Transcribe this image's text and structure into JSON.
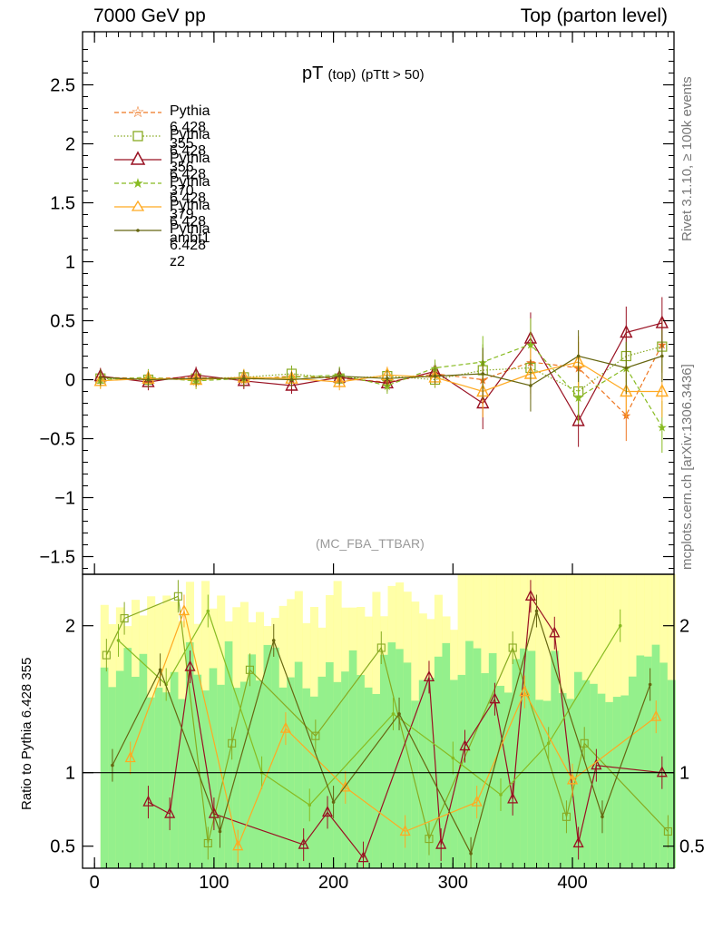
{
  "header": {
    "left": "7000 GeV pp",
    "right": "Top (parton level)"
  },
  "side_labels": {
    "rivet": "Rivet 3.1.10, ≥ 100k events",
    "mcplots": "mcplots.cern.ch [arXiv:1306.3436]"
  },
  "plot_title": {
    "main": "pT",
    "sub1": "(top)",
    "sub2": "(pTtt > 50)"
  },
  "watermark": "(MC_FBA_TTBAR)",
  "chart_data": [
    {
      "type": "line",
      "title": "pT (top) (pTtt > 50)",
      "xlabel": "",
      "ylabel": "",
      "xlim": [
        -10,
        485
      ],
      "ylim": [
        -1.65,
        2.95
      ],
      "yticks": [
        -1.5,
        -1,
        -0.5,
        0,
        0.5,
        1,
        1.5,
        2,
        2.5
      ],
      "ytick_labels": [
        "−1.5",
        "−1",
        "−0.5",
        "0",
        "0.5",
        "1",
        "1.5",
        "2",
        "2.5"
      ],
      "legend_position": "top-left",
      "series": [
        {
          "name": "Pythia 6.428 355",
          "color": "#ee7722",
          "marker": "star",
          "dash": "dashed",
          "x": [
            5,
            45,
            85,
            125,
            165,
            205,
            245,
            285,
            325,
            365,
            405,
            445,
            475
          ],
          "y": [
            0.02,
            0.01,
            0.02,
            0.0,
            0.03,
            0.01,
            -0.02,
            0.05,
            0.0,
            0.15,
            0.1,
            -0.3,
            0.3
          ]
        },
        {
          "name": "Pythia 6.428 356",
          "color": "#88aa22",
          "marker": "open-square",
          "dash": "dotted",
          "x": [
            5,
            45,
            85,
            125,
            165,
            205,
            245,
            285,
            325,
            365,
            405,
            445,
            475
          ],
          "y": [
            0.01,
            0.0,
            0.01,
            0.02,
            0.05,
            0.01,
            0.03,
            0.0,
            0.08,
            0.1,
            -0.1,
            0.2,
            0.28
          ]
        },
        {
          "name": "Pythia 6.428 370",
          "color": "#991122",
          "marker": "open-triangle",
          "dash": "solid",
          "x": [
            5,
            45,
            85,
            125,
            165,
            205,
            245,
            285,
            325,
            365,
            405,
            445,
            475
          ],
          "y": [
            0.03,
            -0.02,
            0.04,
            -0.01,
            -0.05,
            0.02,
            -0.03,
            0.07,
            -0.2,
            0.35,
            -0.35,
            0.4,
            0.48
          ]
        },
        {
          "name": "Pythia 6.428 379",
          "color": "#88bb22",
          "marker": "star",
          "dash": "dashed",
          "x": [
            5,
            45,
            85,
            125,
            165,
            205,
            245,
            285,
            325,
            365,
            405,
            445,
            475
          ],
          "y": [
            0.0,
            0.02,
            -0.01,
            0.01,
            0.02,
            0.04,
            -0.05,
            0.1,
            0.15,
            0.3,
            -0.15,
            0.1,
            -0.4
          ]
        },
        {
          "name": "Pythia 6.428 ambt1",
          "color": "#ffaa22",
          "marker": "open-triangle",
          "dash": "solid",
          "x": [
            5,
            45,
            85,
            125,
            165,
            205,
            245,
            285,
            325,
            365,
            405,
            445,
            475
          ],
          "y": [
            -0.01,
            0.01,
            0.0,
            0.02,
            0.01,
            -0.02,
            0.04,
            0.02,
            -0.1,
            0.05,
            0.15,
            -0.1,
            -0.1
          ]
        },
        {
          "name": "Pythia 6.428 z2",
          "color": "#666611",
          "marker": "dot",
          "dash": "solid",
          "x": [
            5,
            45,
            85,
            125,
            165,
            205,
            245,
            285,
            325,
            365,
            405,
            445,
            475
          ],
          "y": [
            0.02,
            0.0,
            0.01,
            0.01,
            0.0,
            0.03,
            0.01,
            0.03,
            0.05,
            -0.05,
            0.2,
            0.1,
            0.2
          ]
        }
      ]
    },
    {
      "type": "line",
      "title": "",
      "xlabel": "",
      "ylabel": "Ratio to Pythia 6.428 355",
      "xlim": [
        -10,
        485
      ],
      "ylim": [
        0.35,
        2.35
      ],
      "yticks": [
        0.5,
        1,
        2
      ],
      "ytick_labels": [
        "0.5",
        "1",
        "2"
      ],
      "xticks": [
        0,
        100,
        200,
        300,
        400
      ],
      "xtick_labels": [
        "0",
        "100",
        "200",
        "300",
        "400"
      ],
      "reference_line": 1,
      "series": [
        {
          "name": "Pythia 6.428 356",
          "color": "#88aa22",
          "x": [
            10,
            25,
            70,
            95,
            115,
            130,
            185,
            240,
            280,
            350,
            395,
            410,
            480
          ],
          "y": [
            1.8,
            2.05,
            2.2,
            0.52,
            1.2,
            1.7,
            1.25,
            1.85,
            0.55,
            1.85,
            0.7,
            1.2,
            0.6
          ]
        },
        {
          "name": "Pythia 6.428 370",
          "color": "#991122",
          "x": [
            45,
            63,
            80,
            100,
            175,
            195,
            225,
            280,
            290,
            310,
            335,
            350,
            365,
            385,
            405,
            420,
            475
          ],
          "y": [
            0.8,
            0.72,
            1.72,
            0.72,
            0.51,
            0.73,
            0.42,
            1.65,
            0.51,
            1.18,
            1.5,
            0.82,
            2.2,
            1.95,
            0.52,
            1.05,
            1.0
          ]
        },
        {
          "name": "Pythia 6.428 379",
          "color": "#88bb22",
          "x": [
            20,
            60,
            95,
            140,
            180,
            250,
            300,
            340,
            380,
            440
          ],
          "y": [
            1.9,
            1.6,
            2.1,
            1.0,
            0.78,
            1.4,
            1.1,
            0.85,
            1.2,
            2.0
          ]
        },
        {
          "name": "Pythia 6.428 ambt1",
          "color": "#ffaa22",
          "x": [
            30,
            75,
            120,
            160,
            210,
            260,
            320,
            360,
            400,
            470
          ],
          "y": [
            1.1,
            2.1,
            0.5,
            1.3,
            0.9,
            0.6,
            0.8,
            1.55,
            0.95,
            1.38
          ]
        },
        {
          "name": "Pythia 6.428 z2",
          "color": "#666611",
          "x": [
            15,
            55,
            105,
            150,
            200,
            255,
            315,
            370,
            425,
            465
          ],
          "y": [
            1.05,
            1.7,
            0.6,
            1.9,
            0.8,
            1.4,
            0.45,
            2.1,
            0.7,
            1.6
          ]
        }
      ]
    }
  ]
}
